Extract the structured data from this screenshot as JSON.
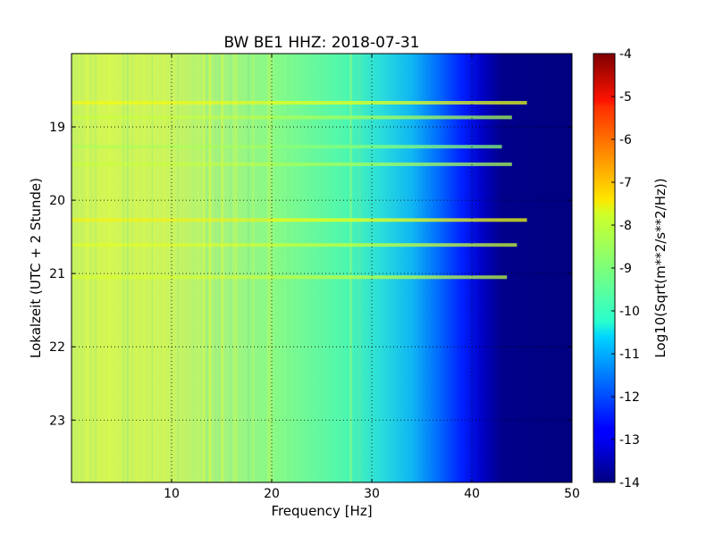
{
  "chart_data": {
    "type": "heatmap",
    "title": "BW BE1 HHZ: 2018-07-31",
    "xlabel": "Frequency [Hz]",
    "ylabel": "Lokalzeit (UTC + 2 Stunde)",
    "xlim": [
      0,
      50
    ],
    "ylim": [
      18.0,
      23.85
    ],
    "x_ticks": [
      "10",
      "20",
      "30",
      "40",
      "50"
    ],
    "x_tick_values": [
      10,
      20,
      30,
      40,
      50
    ],
    "y_ticks": [
      "19",
      "20",
      "21",
      "22",
      "23"
    ],
    "y_tick_values": [
      19,
      20,
      21,
      22,
      23
    ],
    "y_inverted": true,
    "grid": true,
    "colormap": "jet",
    "colorbar": {
      "label": "Log10(Sqrt(m**2/s**2/Hz))",
      "range": [
        -14,
        -4
      ],
      "ticks": [
        "-4",
        "-5",
        "-6",
        "-7",
        "-8",
        "-9",
        "-10",
        "-11",
        "-12",
        "-13",
        "-14"
      ],
      "tick_values": [
        -4,
        -5,
        -6,
        -7,
        -8,
        -9,
        -10,
        -11,
        -12,
        -13,
        -14
      ]
    },
    "spectral_profile": {
      "frequency_hz": [
        0,
        5,
        10,
        15,
        20,
        25,
        30,
        33,
        35,
        38,
        40,
        42,
        43,
        50
      ],
      "log10_amplitude": [
        -8.7,
        -8.5,
        -8.3,
        -8.7,
        -9.0,
        -9.2,
        -9.7,
        -10.2,
        -10.8,
        -11.5,
        -12.3,
        -13.0,
        -14.0,
        -14.0
      ]
    },
    "horizontal_bands": [
      {
        "time": 18.67,
        "end_frequency_hz": 45.5,
        "log10_amplitude": -8.0
      },
      {
        "time": 18.87,
        "end_frequency_hz": 44.0,
        "log10_amplitude": -8.6
      },
      {
        "time": 19.27,
        "end_frequency_hz": 43.0,
        "log10_amplitude": -8.9
      },
      {
        "time": 19.51,
        "end_frequency_hz": 44.0,
        "log10_amplitude": -8.6
      },
      {
        "time": 20.27,
        "end_frequency_hz": 45.5,
        "log10_amplitude": -7.9
      },
      {
        "time": 20.61,
        "end_frequency_hz": 44.5,
        "log10_amplitude": -8.3
      },
      {
        "time": 21.05,
        "end_frequency_hz": 43.5,
        "log10_amplitude": -8.4
      }
    ]
  }
}
